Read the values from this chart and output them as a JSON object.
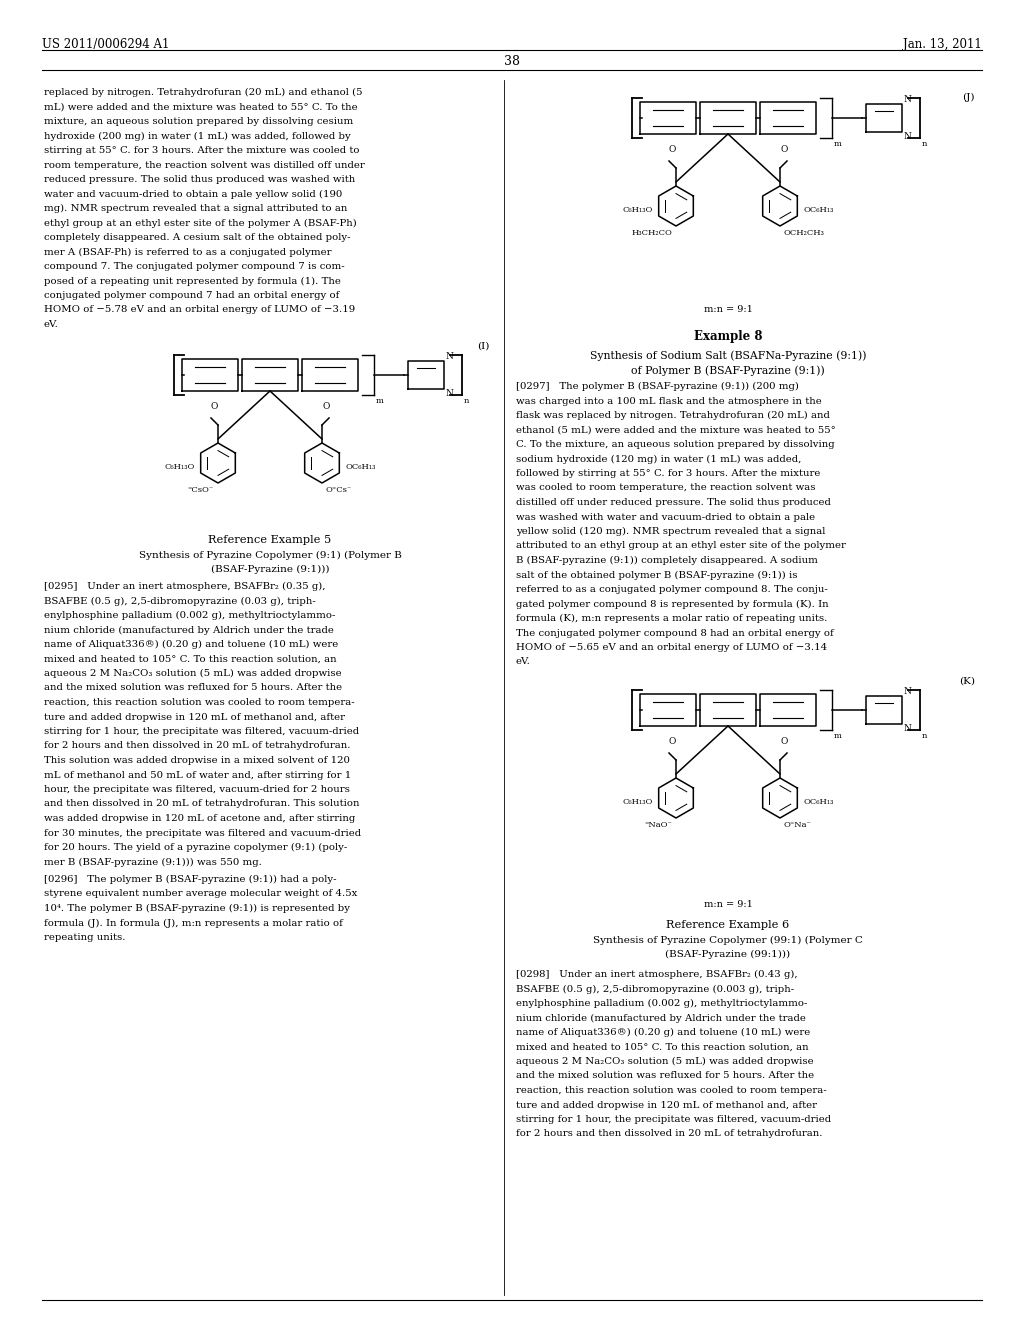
{
  "background_color": "#ffffff",
  "page_width": 10.24,
  "page_height": 13.2,
  "header_left": "US 2011/0006294 A1",
  "header_right": "Jan. 13, 2011",
  "page_number": "38",
  "left_col_text1": [
    "replaced by nitrogen. Tetrahydrofuran (20 mL) and ethanol (5",
    "mL) were added and the mixture was heated to 55° C. To the",
    "mixture, an aqueous solution prepared by dissolving cesium",
    "hydroxide (200 mg) in water (1 mL) was added, followed by",
    "stirring at 55° C. for 3 hours. After the mixture was cooled to",
    "room temperature, the reaction solvent was distilled off under",
    "reduced pressure. The solid thus produced was washed with",
    "water and vacuum-dried to obtain a pale yellow solid (190",
    "mg). NMR spectrum revealed that a signal attributed to an",
    "ethyl group at an ethyl ester site of the polymer A (BSAF-Ph)",
    "completely disappeared. A cesium salt of the obtained poly-",
    "mer A (BSAF-Ph) is referred to as a conjugated polymer",
    "compound 7. The conjugated polymer compound 7 is com-",
    "posed of a repeating unit represented by formula (1). The",
    "conjugated polymer compound 7 had an orbital energy of",
    "HOMO of −5.78 eV and an orbital energy of LUMO of −3.19",
    "eV."
  ],
  "struct_I_label": "(I)",
  "struct_I_caption": "Reference Example 5",
  "struct_I_sub1": "Synthesis of Pyrazine Copolymer (9:1) (Polymer B",
  "struct_I_sub2": "(BSAF-Pyrazine (9:1)))",
  "left_col_text2": [
    "[0295]   Under an inert atmosphere, BSAFBr₂ (0.35 g),",
    "BSAFBE (0.5 g), 2,5-dibromopyrazine (0.03 g), triph-",
    "enylphosphine palladium (0.002 g), methyltrioctylammo-",
    "nium chloride (manufactured by Aldrich under the trade",
    "name of Aliquat336®) (0.20 g) and toluene (10 mL) were",
    "mixed and heated to 105° C. To this reaction solution, an",
    "aqueous 2 M Na₂CO₃ solution (5 mL) was added dropwise",
    "and the mixed solution was refluxed for 5 hours. After the",
    "reaction, this reaction solution was cooled to room tempera-",
    "ture and added dropwise in 120 mL of methanol and, after",
    "stirring for 1 hour, the precipitate was filtered, vacuum-dried",
    "for 2 hours and then dissolved in 20 mL of tetrahydrofuran.",
    "This solution was added dropwise in a mixed solvent of 120",
    "mL of methanol and 50 mL of water and, after stirring for 1",
    "hour, the precipitate was filtered, vacuum-dried for 2 hours",
    "and then dissolved in 20 mL of tetrahydrofuran. This solution",
    "was added dropwise in 120 mL of acetone and, after stirring",
    "for 30 minutes, the precipitate was filtered and vacuum-dried",
    "for 20 hours. The yield of a pyrazine copolymer (9:1) (poly-",
    "mer B (BSAF-pyrazine (9:1))) was 550 mg."
  ],
  "left_col_text3": [
    "[0296]   The polymer B (BSAF-pyrazine (9:1)) had a poly-",
    "styrene equivalent number average molecular weight of 4.5x",
    "10⁴. The polymer B (BSAF-pyrazine (9:1)) is represented by",
    "formula (J). In formula (J), m:n represents a molar ratio of",
    "repeating units."
  ],
  "struct_J_label": "(J)",
  "right_ex8_title": "Example 8",
  "right_ex8_sub1": "Synthesis of Sodium Salt (BSAFNa-Pyrazine (9:1))",
  "right_ex8_sub2": "of Polymer B (BSAF-Pyrazine (9:1))",
  "right_col_text2": [
    "[0297]   The polymer B (BSAF-pyrazine (9:1)) (200 mg)",
    "was charged into a 100 mL flask and the atmosphere in the",
    "flask was replaced by nitrogen. Tetrahydrofuran (20 mL) and",
    "ethanol (5 mL) were added and the mixture was heated to 55°",
    "C. To the mixture, an aqueous solution prepared by dissolving",
    "sodium hydroxide (120 mg) in water (1 mL) was added,",
    "followed by stirring at 55° C. for 3 hours. After the mixture",
    "was cooled to room temperature, the reaction solvent was",
    "distilled off under reduced pressure. The solid thus produced",
    "was washed with water and vacuum-dried to obtain a pale",
    "yellow solid (120 mg). NMR spectrum revealed that a signal",
    "attributed to an ethyl group at an ethyl ester site of the polymer",
    "B (BSAF-pyrazine (9:1)) completely disappeared. A sodium",
    "salt of the obtained polymer B (BSAF-pyrazine (9:1)) is",
    "referred to as a conjugated polymer compound 8. The conju-",
    "gated polymer compound 8 is represented by formula (K). In",
    "formula (K), m:n represents a molar ratio of repeating units.",
    "The conjugated polymer compound 8 had an orbital energy of",
    "HOMO of −5.65 eV and an orbital energy of LUMO of −3.14",
    "eV."
  ],
  "struct_K_label": "(K)",
  "struct_K_caption": "Reference Example 6",
  "struct_K_sub1": "Synthesis of Pyrazine Copolymer (99:1) (Polymer C",
  "struct_K_sub2": "(BSAF-Pyrazine (99:1)))",
  "right_col_text3": [
    "[0298]   Under an inert atmosphere, BSAFBr₂ (0.43 g),",
    "BSAFBE (0.5 g), 2,5-dibromopyrazine (0.003 g), triph-",
    "enylphosphine palladium (0.002 g), methyltrioctylammo-",
    "nium chloride (manufactured by Aldrich under the trade",
    "name of Aliquat336®) (0.20 g) and toluene (10 mL) were",
    "mixed and heated to 105° C. To this reaction solution, an",
    "aqueous 2 M Na₂CO₃ solution (5 mL) was added dropwise",
    "and the mixed solution was refluxed for 5 hours. After the",
    "reaction, this reaction solution was cooled to room tempera-",
    "ture and added dropwise in 120 mL of methanol and, after",
    "stirring for 1 hour, the precipitate was filtered, vacuum-dried",
    "for 2 hours and then dissolved in 20 mL of tetrahydrofuran."
  ]
}
